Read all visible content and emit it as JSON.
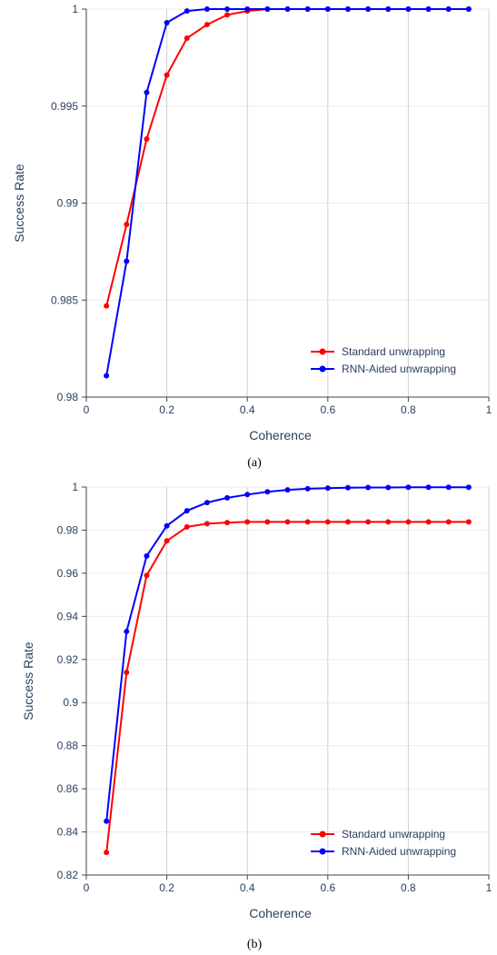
{
  "chart_data": [
    {
      "type": "line",
      "caption": "(a)",
      "xlabel": "Coherence",
      "ylabel": "Success Rate",
      "xlim": [
        0,
        1
      ],
      "ylim": [
        0.98,
        1
      ],
      "xticks": [
        0,
        0.2,
        0.4,
        0.6,
        0.8,
        1
      ],
      "xtick_labels": [
        "0",
        "0.2",
        "0.4",
        "0.6",
        "0.8",
        "1"
      ],
      "yticks": [
        0.98,
        0.985,
        0.99,
        0.995,
        1
      ],
      "ytick_labels": [
        "0.98",
        "0.985",
        "0.99",
        "0.995",
        "1"
      ],
      "grid": true,
      "legend_position": "bottom-right",
      "x": [
        0.05,
        0.1,
        0.15,
        0.2,
        0.25,
        0.3,
        0.35,
        0.4,
        0.45,
        0.5,
        0.55,
        0.6,
        0.65,
        0.7,
        0.75,
        0.8,
        0.85,
        0.9,
        0.95
      ],
      "series": [
        {
          "name": "Standard unwrapping",
          "color": "#ff0000",
          "values": [
            0.9847,
            0.9889,
            0.9933,
            0.9966,
            0.9985,
            0.9992,
            0.9997,
            0.9999,
            1.0,
            1.0,
            1.0,
            1.0,
            1.0,
            1.0,
            1.0,
            1.0,
            1.0,
            1.0,
            1.0
          ]
        },
        {
          "name": "RNN-Aided unwrapping",
          "color": "#0000ff",
          "values": [
            0.9811,
            0.987,
            0.9957,
            0.9993,
            0.9999,
            1.0,
            1.0,
            1.0,
            1.0,
            1.0,
            1.0,
            1.0,
            1.0,
            1.0,
            1.0,
            1.0,
            1.0,
            1.0,
            1.0
          ]
        }
      ]
    },
    {
      "type": "line",
      "caption": "(b)",
      "xlabel": "Coherence",
      "ylabel": "Success Rate",
      "xlim": [
        0,
        1
      ],
      "ylim": [
        0.82,
        1.0
      ],
      "xticks": [
        0,
        0.2,
        0.4,
        0.6,
        0.8,
        1
      ],
      "xtick_labels": [
        "0",
        "0.2",
        "0.4",
        "0.6",
        "0.8",
        "1"
      ],
      "yticks": [
        0.82,
        0.84,
        0.86,
        0.88,
        0.9,
        0.92,
        0.94,
        0.96,
        0.98,
        1
      ],
      "ytick_labels": [
        "0.82",
        "0.84",
        "0.86",
        "0.88",
        "0.9",
        "0.92",
        "0.94",
        "0.96",
        "0.98",
        "1"
      ],
      "grid": true,
      "legend_position": "bottom-right",
      "x": [
        0.05,
        0.1,
        0.15,
        0.2,
        0.25,
        0.3,
        0.35,
        0.4,
        0.45,
        0.5,
        0.55,
        0.6,
        0.65,
        0.7,
        0.75,
        0.8,
        0.85,
        0.9,
        0.95
      ],
      "series": [
        {
          "name": "Standard unwrapping",
          "color": "#ff0000",
          "values": [
            0.8305,
            0.914,
            0.959,
            0.975,
            0.9815,
            0.983,
            0.9835,
            0.9838,
            0.9838,
            0.9838,
            0.9838,
            0.9838,
            0.9838,
            0.9838,
            0.9838,
            0.9838,
            0.9838,
            0.9838,
            0.9838
          ]
        },
        {
          "name": "RNN-Aided unwrapping",
          "color": "#0000ff",
          "values": [
            0.845,
            0.933,
            0.968,
            0.982,
            0.989,
            0.9928,
            0.995,
            0.9965,
            0.9978,
            0.9987,
            0.9992,
            0.9995,
            0.9997,
            0.9998,
            0.9998,
            0.9999,
            0.9999,
            0.9999,
            0.9999
          ]
        }
      ]
    }
  ]
}
